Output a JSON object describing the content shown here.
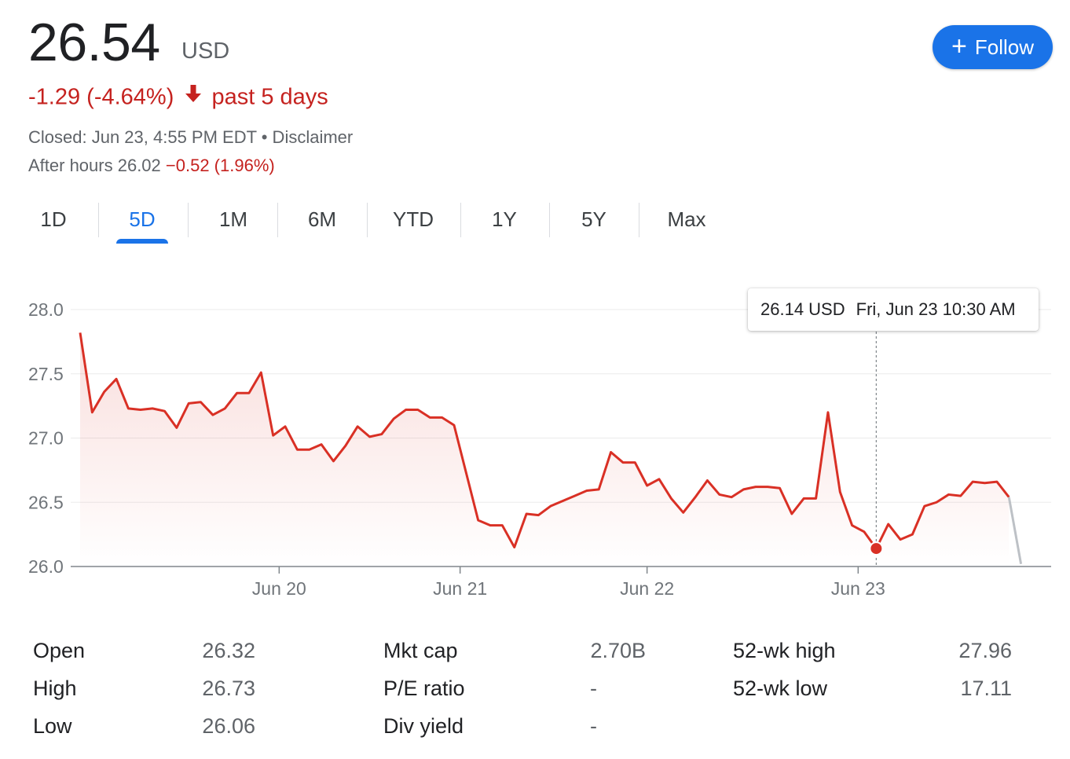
{
  "quote": {
    "price": "26.54",
    "currency": "USD",
    "change": "-1.29 (-4.64%)",
    "period": "past 5 days",
    "closed": "Closed: Jun 23, 4:55 PM EDT • Disclaimer",
    "after_hours_label": "After hours 26.02",
    "after_hours_change": "−0.52 (1.96%)"
  },
  "follow": {
    "label": "Follow"
  },
  "tabs": [
    {
      "label": "1D"
    },
    {
      "label": "5D"
    },
    {
      "label": "1M"
    },
    {
      "label": "6M"
    },
    {
      "label": "YTD"
    },
    {
      "label": "1Y"
    },
    {
      "label": "5Y"
    },
    {
      "label": "Max"
    }
  ],
  "active_tab": "5D",
  "colors": {
    "line": "#d93025",
    "accent": "#1a73e8",
    "negative": "#c5221f",
    "extended": "#bdc1c6"
  },
  "tooltip": {
    "value": "26.14 USD",
    "date": "Fri, Jun 23 10:30 AM"
  },
  "chart_data": {
    "type": "line",
    "title": "",
    "xlabel": "",
    "ylabel": "",
    "yticks": [
      "28.0",
      "27.5",
      "27.0",
      "26.5",
      "26.0"
    ],
    "ylim": [
      26.0,
      28.0
    ],
    "xticks": [
      {
        "label": "Jun 20",
        "x": 16.5
      },
      {
        "label": "Jun 21",
        "x": 31.5
      },
      {
        "label": "Jun 22",
        "x": 47
      },
      {
        "label": "Jun 23",
        "x": 64.5
      }
    ],
    "x_domain": [
      0,
      80.5
    ],
    "series": [
      {
        "values": [
          27.82,
          27.2,
          27.36,
          27.46,
          27.23,
          27.22,
          27.23,
          27.21,
          27.08,
          27.27,
          27.28,
          27.18,
          27.23,
          27.35,
          27.35,
          27.51,
          27.02,
          27.09,
          26.91,
          26.91,
          26.95,
          26.82,
          26.94,
          27.09,
          27.01,
          27.03,
          27.15,
          27.22,
          27.22,
          27.16,
          27.16,
          27.1,
          26.73,
          26.36,
          26.32,
          26.32,
          26.15,
          26.41,
          26.4,
          26.47,
          26.51,
          26.55,
          26.59,
          26.6,
          26.89,
          26.81,
          26.81,
          26.63,
          26.68,
          26.53,
          26.42,
          26.54,
          26.67,
          26.56,
          26.54,
          26.6,
          26.62,
          26.62,
          26.61,
          26.41,
          26.53,
          26.53,
          27.2,
          26.58,
          26.32,
          26.27,
          26.14,
          26.33,
          26.21,
          26.25,
          26.47,
          26.5,
          26.56,
          26.55,
          26.66,
          26.65,
          26.66,
          26.54
        ]
      }
    ],
    "after_hours": [
      26.54,
      26.02
    ],
    "highlight": {
      "index": 66,
      "value": 26.14
    },
    "grid": true,
    "legend": "none"
  },
  "stats": [
    {
      "label": "Open",
      "value": "26.32"
    },
    {
      "label": "High",
      "value": "26.73"
    },
    {
      "label": "Low",
      "value": "26.06"
    },
    {
      "label": "Mkt cap",
      "value": "2.70B"
    },
    {
      "label": "P/E ratio",
      "value": "-"
    },
    {
      "label": "Div yield",
      "value": "-"
    },
    {
      "label": "52-wk high",
      "value": "27.96"
    },
    {
      "label": "52-wk low",
      "value": "17.11"
    }
  ]
}
